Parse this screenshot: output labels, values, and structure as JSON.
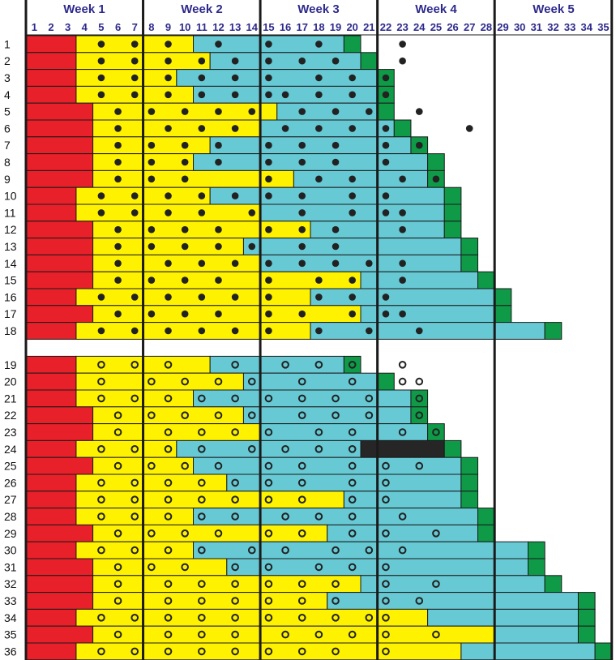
{
  "chart_data": {
    "type": "gantt",
    "title": "",
    "xlabel": "",
    "ylabel": "",
    "weeks": [
      "Week 1",
      "Week 2",
      "Week 3",
      "Week 4",
      "Week 5"
    ],
    "days": [
      "1",
      "2",
      "3",
      "4",
      "5",
      "6",
      "7",
      "8",
      "9",
      "10",
      "11",
      "12",
      "13",
      "14",
      "15",
      "16",
      "17",
      "18",
      "19",
      "20",
      "21",
      "22",
      "23",
      "24",
      "25",
      "26",
      "27",
      "28",
      "29",
      "30",
      "31",
      "32",
      "33",
      "34",
      "35"
    ],
    "day_range": [
      1,
      35
    ],
    "colors": {
      "red": "#e8202a",
      "yellow": "#fff200",
      "cyan": "#66c9d4",
      "green": "#0f9a48",
      "black": "#262626",
      "dot": "#222222",
      "grid": "#1a1a1a",
      "label": "#2e2a8c"
    },
    "rows": [
      {
        "label": "1",
        "marker": "filled",
        "red_end": 3,
        "yellow_end": 10,
        "cyan_end": 19,
        "green": [
          19,
          20
        ],
        "markers": [
          4.5,
          6.5,
          8.5,
          11.5,
          14.5,
          17.5,
          22.5
        ]
      },
      {
        "label": "2",
        "marker": "filled",
        "red_end": 3,
        "yellow_end": 11,
        "cyan_end": 20,
        "green": [
          20,
          21
        ],
        "markers": [
          4.5,
          6.5,
          8.5,
          10.5,
          12.5,
          14.5,
          16.5,
          18.5,
          22.5
        ]
      },
      {
        "label": "3",
        "marker": "filled",
        "red_end": 3,
        "yellow_end": 9,
        "cyan_end": 21,
        "green": [
          21,
          22
        ],
        "markers": [
          4.5,
          6.5,
          8.5,
          10.5,
          12.5,
          14.5,
          17.5,
          19.5,
          21.5
        ]
      },
      {
        "label": "4",
        "marker": "filled",
        "red_end": 3,
        "yellow_end": 10,
        "cyan_end": 21,
        "green": [
          21,
          22
        ],
        "markers": [
          4.5,
          6.5,
          8.5,
          10.5,
          12.5,
          14.5,
          15.5,
          17.5,
          19.5,
          21.5
        ]
      },
      {
        "label": "5",
        "marker": "filled",
        "red_end": 4,
        "yellow_end": 15,
        "cyan_end": 21,
        "green": [
          21,
          22
        ],
        "markers": [
          5.5,
          7.5,
          9.5,
          11.5,
          13.5,
          16.5,
          18.5,
          20.5,
          23.5
        ]
      },
      {
        "label": "6",
        "marker": "filled",
        "red_end": 4,
        "yellow_end": 14,
        "cyan_end": 22,
        "green": [
          22,
          23
        ],
        "markers": [
          5.5,
          8.5,
          10.5,
          12.5,
          15.5,
          17.5,
          19.5,
          21.5,
          26.5
        ]
      },
      {
        "label": "7",
        "marker": "filled",
        "red_end": 4,
        "yellow_end": 11,
        "cyan_end": 23,
        "green": [
          23,
          24
        ],
        "markers": [
          5.5,
          7.5,
          9.5,
          11.5,
          14.5,
          16.5,
          18.5,
          21.5,
          23.5
        ]
      },
      {
        "label": "8",
        "marker": "filled",
        "red_end": 4,
        "yellow_end": 10,
        "cyan_end": 24,
        "green": [
          24,
          25
        ],
        "markers": [
          5.5,
          7.5,
          9.5,
          11.5,
          14.5,
          16.5,
          18.5,
          21.5
        ]
      },
      {
        "label": "9",
        "marker": "filled",
        "red_end": 4,
        "yellow_end": 16,
        "cyan_end": 24,
        "green": [
          24,
          25
        ],
        "markers": [
          5.5,
          7.5,
          9.5,
          14.5,
          17.5,
          19.5,
          22.5,
          24.5
        ]
      },
      {
        "label": "10",
        "marker": "filled",
        "red_end": 3,
        "yellow_end": 11,
        "cyan_end": 25,
        "green": [
          25,
          26
        ],
        "markers": [
          4.5,
          6.5,
          8.5,
          10.5,
          12.5,
          14.5,
          16.5,
          19.5,
          21.5
        ]
      },
      {
        "label": "11",
        "marker": "filled",
        "red_end": 3,
        "yellow_end": 14,
        "cyan_end": 25,
        "green": [
          25,
          26
        ],
        "markers": [
          4.5,
          6.5,
          8.5,
          10.5,
          13.5,
          16.5,
          19.5,
          21.5,
          22.5
        ]
      },
      {
        "label": "12",
        "marker": "filled",
        "red_end": 4,
        "yellow_end": 17,
        "cyan_end": 25,
        "green": [
          25,
          26
        ],
        "markers": [
          5.5,
          7.5,
          9.5,
          11.5,
          14.5,
          16.5,
          18.5,
          22.5
        ]
      },
      {
        "label": "13",
        "marker": "filled",
        "red_end": 4,
        "yellow_end": 13,
        "cyan_end": 26,
        "green": [
          26,
          27
        ],
        "markers": [
          5.5,
          7.5,
          9.5,
          11.5,
          13.5,
          16.5,
          18.5
        ]
      },
      {
        "label": "14",
        "marker": "filled",
        "red_end": 4,
        "yellow_end": 14,
        "cyan_end": 26,
        "green": [
          26,
          27
        ],
        "markers": [
          5.5,
          8.5,
          10.5,
          12.5,
          14.5,
          16.5,
          18.5,
          20.5,
          22.5
        ]
      },
      {
        "label": "15",
        "marker": "filled",
        "red_end": 4,
        "yellow_end": 20,
        "cyan_end": 27,
        "green": [
          27,
          28
        ],
        "markers": [
          5.5,
          7.5,
          9.5,
          11.5,
          14.5,
          17.5,
          19.5,
          22.5
        ]
      },
      {
        "label": "16",
        "marker": "filled",
        "red_end": 3,
        "yellow_end": 17,
        "cyan_end": 28,
        "green": [
          28,
          29
        ],
        "markers": [
          4.5,
          6.5,
          8.5,
          10.5,
          12.5,
          14.5,
          17.5,
          19.5,
          21.5
        ]
      },
      {
        "label": "17",
        "marker": "filled",
        "red_end": 4,
        "yellow_end": 20,
        "cyan_end": 28,
        "green": [
          28,
          29
        ],
        "markers": [
          5.5,
          7.5,
          9.5,
          11.5,
          14.5,
          16.5,
          19.5,
          21.5,
          22.5
        ]
      },
      {
        "label": "18",
        "marker": "filled",
        "red_end": 3,
        "yellow_end": 17,
        "cyan_end": 31,
        "green": [
          31,
          32
        ],
        "markers": [
          4.5,
          6.5,
          8.5,
          10.5,
          12.5,
          14.5,
          17.5,
          20.5,
          23.5
        ]
      },
      {
        "label": "19",
        "marker": "hollow",
        "red_end": 3,
        "yellow_end": 11,
        "cyan_end": 19,
        "green": [
          19,
          20
        ],
        "markers": [
          4.5,
          6.5,
          8.5,
          12.5,
          15.5,
          17.5,
          19.5,
          22.5
        ]
      },
      {
        "label": "20",
        "marker": "hollow",
        "red_end": 3,
        "yellow_end": 13,
        "cyan_end": 21,
        "green": [
          21,
          22
        ],
        "markers": [
          4.5,
          7.5,
          9.5,
          11.5,
          13.5,
          16.5,
          19.5,
          22.5,
          23.5
        ]
      },
      {
        "label": "21",
        "marker": "hollow",
        "red_end": 3,
        "yellow_end": 10,
        "cyan_end": 23,
        "green": [
          23,
          24
        ],
        "markers": [
          4.5,
          6.5,
          8.5,
          10.5,
          12.5,
          14.5,
          16.5,
          18.5,
          20.5,
          23.5
        ]
      },
      {
        "label": "22",
        "marker": "hollow",
        "red_end": 4,
        "yellow_end": 13,
        "cyan_end": 23,
        "green": [
          23,
          24
        ],
        "markers": [
          5.5,
          7.5,
          9.5,
          11.5,
          13.5,
          16.5,
          18.5,
          20.5,
          23.5
        ]
      },
      {
        "label": "23",
        "marker": "hollow",
        "red_end": 4,
        "yellow_end": 14,
        "cyan_end": 24,
        "green": [
          24,
          25
        ],
        "markers": [
          5.5,
          8.5,
          10.5,
          12.5,
          14.5,
          17.5,
          19.5,
          22.5,
          24.5
        ]
      },
      {
        "label": "24",
        "marker": "hollow",
        "red_end": 3,
        "yellow_end": 9,
        "cyan_end": 20,
        "black": [
          20,
          25
        ],
        "green": [
          25,
          26
        ],
        "markers": [
          4.5,
          6.5,
          8.5,
          10.5,
          13.5,
          15.5,
          17.5,
          19.5
        ]
      },
      {
        "label": "25",
        "marker": "hollow",
        "red_end": 4,
        "yellow_end": 10,
        "cyan_end": 26,
        "green": [
          26,
          27
        ],
        "markers": [
          5.5,
          7.5,
          9.5,
          11.5,
          14.5,
          16.5,
          19.5,
          21.5,
          23.5
        ]
      },
      {
        "label": "26",
        "marker": "hollow",
        "red_end": 3,
        "yellow_end": 12,
        "cyan_end": 26,
        "green": [
          26,
          27
        ],
        "markers": [
          4.5,
          6.5,
          8.5,
          10.5,
          12.5,
          14.5,
          16.5,
          19.5,
          21.5
        ]
      },
      {
        "label": "27",
        "marker": "hollow",
        "red_end": 3,
        "yellow_end": 19,
        "cyan_end": 26,
        "green": [
          26,
          27
        ],
        "markers": [
          4.5,
          6.5,
          8.5,
          10.5,
          12.5,
          14.5,
          16.5,
          19.5,
          21.5
        ]
      },
      {
        "label": "28",
        "marker": "hollow",
        "red_end": 3,
        "yellow_end": 10,
        "cyan_end": 27,
        "green": [
          27,
          28
        ],
        "markers": [
          4.5,
          6.5,
          8.5,
          10.5,
          12.5,
          15.5,
          17.5,
          19.5,
          22.5
        ]
      },
      {
        "label": "29",
        "marker": "hollow",
        "red_end": 4,
        "yellow_end": 18,
        "cyan_end": 27,
        "green": [
          27,
          28
        ],
        "markers": [
          5.5,
          7.5,
          9.5,
          11.5,
          14.5,
          16.5,
          19.5,
          21.5,
          24.5
        ]
      },
      {
        "label": "30",
        "marker": "hollow",
        "red_end": 3,
        "yellow_end": 10,
        "cyan_end": 30,
        "green": [
          30,
          31
        ],
        "markers": [
          4.5,
          6.5,
          8.5,
          10.5,
          13.5,
          15.5,
          18.5,
          20.5,
          22.5
        ]
      },
      {
        "label": "31",
        "marker": "hollow",
        "red_end": 4,
        "yellow_end": 12,
        "cyan_end": 30,
        "green": [
          30,
          31
        ],
        "markers": [
          5.5,
          7.5,
          9.5,
          12.5,
          14.5,
          17.5,
          19.5,
          21.5
        ]
      },
      {
        "label": "32",
        "marker": "hollow",
        "red_end": 4,
        "yellow_end": 20,
        "cyan_end": 31,
        "green": [
          31,
          32
        ],
        "markers": [
          5.5,
          8.5,
          10.5,
          12.5,
          14.5,
          16.5,
          18.5,
          21.5,
          24.5
        ]
      },
      {
        "label": "33",
        "marker": "hollow",
        "red_end": 4,
        "yellow_end": 18,
        "cyan_end": 33,
        "green": [
          33,
          34
        ],
        "markers": [
          5.5,
          8.5,
          10.5,
          12.5,
          14.5,
          16.5,
          18.5,
          21.5,
          23.5
        ]
      },
      {
        "label": "34",
        "marker": "hollow",
        "red_end": 3,
        "yellow_end": 24,
        "cyan_end": 33,
        "green": [
          33,
          34
        ],
        "markers": [
          4.5,
          6.5,
          8.5,
          10.5,
          12.5,
          14.5,
          16.5,
          18.5,
          20.5,
          21.5
        ]
      },
      {
        "label": "35",
        "marker": "hollow",
        "red_end": 4,
        "yellow_end": 28,
        "cyan_end": 33,
        "green": [
          33,
          34
        ],
        "markers": [
          5.5,
          8.5,
          10.5,
          12.5,
          15.5,
          17.5,
          19.5,
          21.5,
          24.5
        ]
      },
      {
        "label": "36",
        "marker": "hollow",
        "red_end": 3,
        "yellow_end": 26,
        "cyan_end": 34,
        "green": [
          34,
          35
        ],
        "markers": [
          4.5,
          6.5,
          8.5,
          10.5,
          12.5,
          14.5,
          16.5,
          18.5,
          21.5
        ]
      }
    ]
  }
}
